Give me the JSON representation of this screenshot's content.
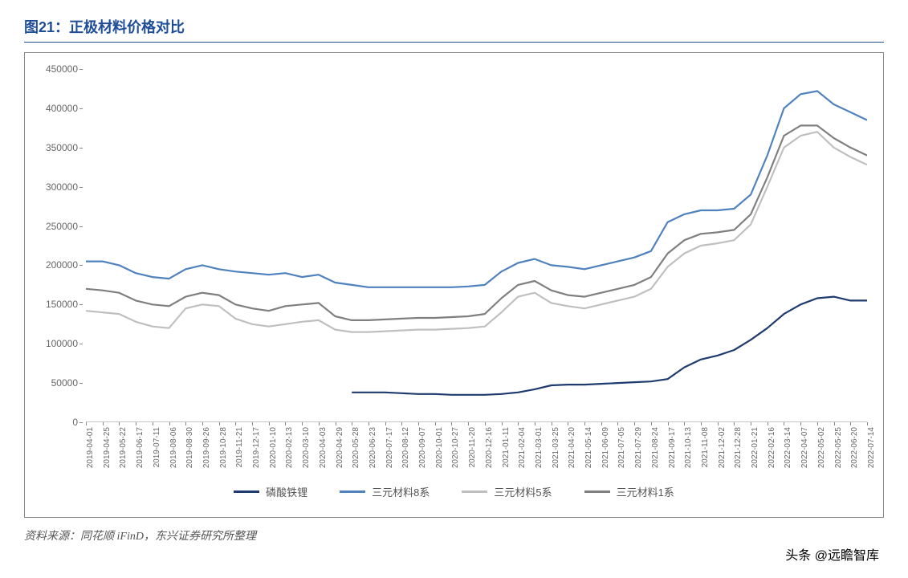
{
  "title": "图21：正极材料价格对比",
  "source": "资料来源：同花顺 iFinD，东兴证券研究所整理",
  "watermark": "头条 @远瞻智库",
  "chart": {
    "type": "line",
    "background_color": "#ffffff",
    "border_color": "#888888",
    "axis_color": "#888888",
    "label_color": "#666666",
    "label_fontsize": 12,
    "line_width": 2.2,
    "ylim": [
      0,
      450000
    ],
    "ytick_step": 50000,
    "yticks": [
      0,
      50000,
      100000,
      150000,
      200000,
      250000,
      300000,
      350000,
      400000,
      450000
    ],
    "x_labels": [
      "2019-04-01",
      "2019-04-25",
      "2019-05-22",
      "2019-06-17",
      "2019-07-11",
      "2019-08-06",
      "2019-08-30",
      "2019-09-26",
      "2019-10-28",
      "2019-11-21",
      "2019-12-17",
      "2020-01-10",
      "2020-02-13",
      "2020-03-10",
      "2020-04-03",
      "2020-04-29",
      "2020-05-28",
      "2020-06-23",
      "2020-07-17",
      "2020-08-12",
      "2020-09-07",
      "2020-10-01",
      "2020-10-27",
      "2020-11-20",
      "2020-12-16",
      "2021-01-11",
      "2021-02-04",
      "2021-03-01",
      "2021-03-25",
      "2021-04-20",
      "2021-05-14",
      "2021-06-09",
      "2021-07-05",
      "2021-07-29",
      "2021-08-24",
      "2021-09-17",
      "2021-10-13",
      "2021-11-08",
      "2021-12-02",
      "2021-12-28",
      "2022-01-21",
      "2022-02-16",
      "2022-03-14",
      "2022-04-07",
      "2022-05-02",
      "2022-05-25",
      "2022-06-20",
      "2022-07-14"
    ],
    "series": [
      {
        "name": "磷酸铁锂",
        "color": "#1f3a6e",
        "start_index": 16,
        "values": [
          38000,
          38000,
          38000,
          37000,
          36000,
          36000,
          35000,
          35000,
          35000,
          36000,
          38000,
          42000,
          47000,
          48000,
          48000,
          49000,
          50000,
          51000,
          52000,
          55000,
          70000,
          80000,
          85000,
          92000,
          105000,
          120000,
          138000,
          150000,
          158000,
          160000,
          155000,
          155000
        ]
      },
      {
        "name": "三元材料8系",
        "color": "#4f81bd",
        "start_index": 0,
        "values": [
          205000,
          205000,
          200000,
          190000,
          185000,
          183000,
          195000,
          200000,
          195000,
          192000,
          190000,
          188000,
          190000,
          185000,
          188000,
          178000,
          175000,
          172000,
          172000,
          172000,
          172000,
          172000,
          172000,
          173000,
          175000,
          192000,
          203000,
          208000,
          200000,
          198000,
          195000,
          200000,
          205000,
          210000,
          218000,
          255000,
          265000,
          270000,
          270000,
          272000,
          290000,
          340000,
          400000,
          418000,
          422000,
          405000,
          395000,
          385000
        ]
      },
      {
        "name": "三元材料5系",
        "color": "#bfbfbf",
        "start_index": 0,
        "values": [
          142000,
          140000,
          138000,
          128000,
          122000,
          120000,
          145000,
          150000,
          148000,
          132000,
          125000,
          122000,
          125000,
          128000,
          130000,
          118000,
          115000,
          115000,
          116000,
          117000,
          118000,
          118000,
          119000,
          120000,
          122000,
          140000,
          160000,
          165000,
          152000,
          148000,
          145000,
          150000,
          155000,
          160000,
          170000,
          198000,
          215000,
          225000,
          228000,
          232000,
          252000,
          300000,
          350000,
          365000,
          370000,
          350000,
          338000,
          328000
        ]
      },
      {
        "name": "三元材料1系",
        "color": "#7f7f7f",
        "start_index": 0,
        "values": [
          170000,
          168000,
          165000,
          155000,
          150000,
          148000,
          160000,
          165000,
          162000,
          150000,
          145000,
          142000,
          148000,
          150000,
          152000,
          135000,
          130000,
          130000,
          131000,
          132000,
          133000,
          133000,
          134000,
          135000,
          138000,
          158000,
          175000,
          180000,
          168000,
          162000,
          160000,
          165000,
          170000,
          175000,
          185000,
          215000,
          232000,
          240000,
          242000,
          245000,
          265000,
          312000,
          365000,
          378000,
          378000,
          362000,
          350000,
          340000
        ]
      }
    ],
    "legend_order": [
      "磷酸铁锂",
      "三元材料8系",
      "三元材料5系",
      "三元材料1系"
    ]
  }
}
